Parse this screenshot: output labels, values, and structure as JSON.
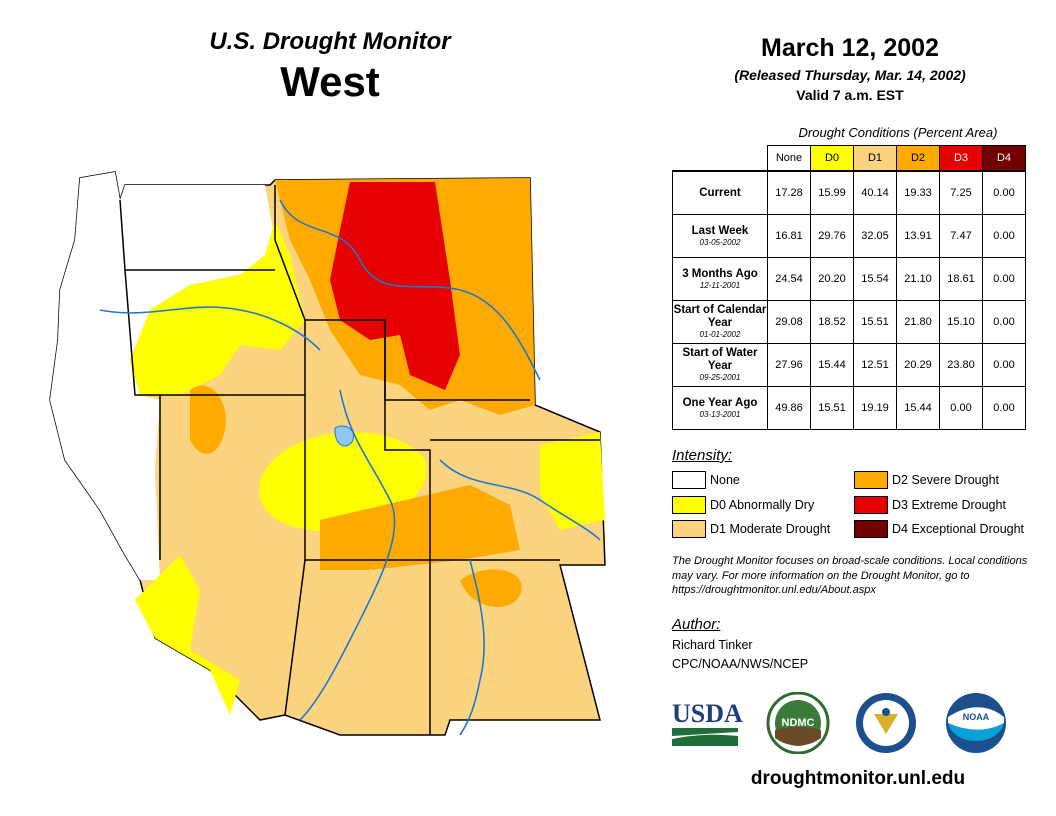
{
  "header": {
    "subtitle": "U.S. Drought Monitor",
    "region": "West",
    "date": "March 12, 2002",
    "released": "(Released Thursday, Mar. 14, 2002)",
    "valid": "Valid 7 a.m. EST"
  },
  "table": {
    "caption": "Drought Conditions (Percent Area)",
    "columns": [
      "None",
      "D0",
      "D1",
      "D2",
      "D3",
      "D4"
    ],
    "column_colors": [
      "#ffffff",
      "#ffff00",
      "#fcd37f",
      "#ffaa00",
      "#e60000",
      "#730000"
    ],
    "column_text_colors": [
      "#000000",
      "#000000",
      "#000000",
      "#000000",
      "#ffffff",
      "#ffffff"
    ],
    "rows": [
      {
        "label": "Current",
        "date": "",
        "values": [
          "17.28",
          "15.99",
          "40.14",
          "19.33",
          "7.25",
          "0.00"
        ]
      },
      {
        "label": "Last Week",
        "date": "03-05-2002",
        "values": [
          "16.81",
          "29.76",
          "32.05",
          "13.91",
          "7.47",
          "0.00"
        ]
      },
      {
        "label": "3 Months Ago",
        "date": "12-11-2001",
        "values": [
          "24.54",
          "20.20",
          "15.54",
          "21.10",
          "18.61",
          "0.00"
        ]
      },
      {
        "label": "Start of Calendar Year",
        "date": "01-01-2002",
        "values": [
          "29.08",
          "18.52",
          "15.51",
          "21.80",
          "15.10",
          "0.00"
        ]
      },
      {
        "label": "Start of Water Year",
        "date": "09-25-2001",
        "values": [
          "27.96",
          "15.44",
          "12.51",
          "20.29",
          "23.80",
          "0.00"
        ]
      },
      {
        "label": "One Year Ago",
        "date": "03-13-2001",
        "values": [
          "49.86",
          "15.51",
          "19.19",
          "15.44",
          "0.00",
          "0.00"
        ]
      }
    ]
  },
  "legend": {
    "title": "Intensity:",
    "items": [
      {
        "label": "None",
        "color": "#ffffff"
      },
      {
        "label": "D0 Abnormally Dry",
        "color": "#ffff00"
      },
      {
        "label": "D1 Moderate Drought",
        "color": "#fcd37f"
      },
      {
        "label": "D2 Severe Drought",
        "color": "#ffaa00"
      },
      {
        "label": "D3 Extreme Drought",
        "color": "#e60000"
      },
      {
        "label": "D4 Exceptional Drought",
        "color": "#730000"
      }
    ]
  },
  "note": "The Drought Monitor focuses on broad-scale conditions. Local conditions may vary. For more information on the Drought Monitor, go to https://droughtmonitor.unl.edu/About.aspx",
  "author": {
    "title": "Author:",
    "name": "Richard Tinker",
    "org": "CPC/NOAA/NWS/NCEP"
  },
  "logos": {
    "usda": "USDA",
    "ndmc": "NDMC",
    "noaa": "NOAA"
  },
  "url": "droughtmonitor.unl.edu"
}
